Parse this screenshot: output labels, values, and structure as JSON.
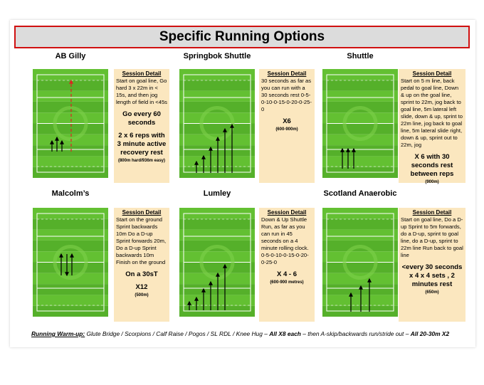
{
  "header": {
    "title": "Specific Running Options"
  },
  "panels": [
    {
      "title": "AB Gilly",
      "heading": "Session Detail",
      "body": "Start on goal line, Go hard 3 x 22m in < 15s, and then jog length of field in <45s",
      "emphasis": [
        "Go every 60 seconds",
        "2 x 6 reps with 3 minute active recovery rest"
      ],
      "note": "(800m hard/936m easy)"
    },
    {
      "title": "Springbok Shuttle",
      "heading": "Session Detail",
      "body": "30 seconds as far as you can run with a 30 seconds rest 0-5-0-10-0-15-0-20-0-25-0",
      "emphasis": [
        "X6"
      ],
      "note": "(600-900m)"
    },
    {
      "title": "Shuttle",
      "heading": "Session Detail",
      "body": "Start on 5 m line, back pedal to goal line, Down & up on the goal line, sprint to 22m, jog back to goal line, 5m lateral left slide, down & up, sprint to 22m line, jog back to goal line, 5m lateral slide right, down & up, sprint out to 22m, jog",
      "emphasis": [
        "X 6 with 30 seconds rest between reps"
      ],
      "note": "(900m)"
    },
    {
      "title": "Malcolm’s",
      "heading": "Session Detail",
      "body": "Start on the ground Sprint backwards 10m Do a D-up Sprint forwards 20m, Do a D-up Sprint backwards 10m Finish on the ground",
      "emphasis": [
        "On a 30sT",
        "X12"
      ],
      "note": "(500m)"
    },
    {
      "title": "Lumley",
      "heading": "Session Detail",
      "body": "Down & Up Shuttle Run, as far as you can run in 45 seconds on a 4 minute rolling clock. 0-5-0-10-0-15-0-20-0-25-0",
      "emphasis": [
        "X 4 - 6"
      ],
      "note": "(600-900 metres)"
    },
    {
      "title": "Scotland Anaerobic",
      "heading": "Session Detail",
      "body": "Start on goal line, Do a D-up Sprint to 5m forwards, do a D-up, sprint to goal line, do a D-up, sprint to 22m line Run back to goal line",
      "emphasis": [
        "<every 30 seconds x 4 x 4 sets , 2 minutes rest"
      ],
      "note": "(650m)"
    }
  ],
  "footer": {
    "label": "Running Warm-up:",
    "text1": "Glute Bridge / Scorpions / Calf Raise / Pogos / SL RDL / Knee Hug –",
    "bold1": "All X8 each",
    "text2": "– then A-skip/backwards run/stride out –",
    "bold2": "All 20-30m X2"
  }
}
